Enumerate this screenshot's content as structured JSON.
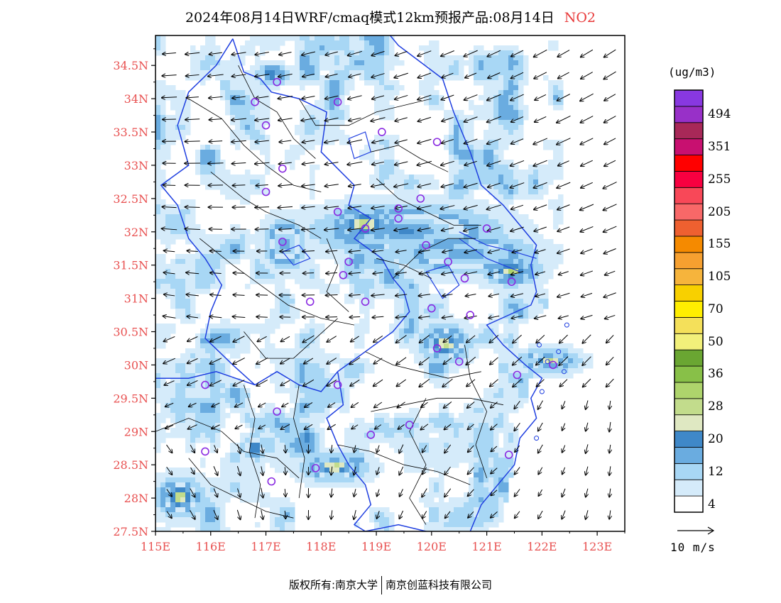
{
  "title": {
    "main": "2024年08月14日WRF/cmaq模式12km预报产品:08月14日",
    "pollutant": "NO2"
  },
  "colorbar": {
    "unit": "(ug/m3)",
    "bins": [
      {
        "label": "4",
        "color": "#ffffff"
      },
      {
        "label": "",
        "color": "#d5ebfa"
      },
      {
        "label": "12",
        "color": "#a8d7f5"
      },
      {
        "label": "",
        "color": "#6aace0"
      },
      {
        "label": "20",
        "color": "#3f88c8"
      },
      {
        "label": "",
        "color": "#dfe8c2"
      },
      {
        "label": "28",
        "color": "#c2dc8c"
      },
      {
        "label": "",
        "color": "#aed46c"
      },
      {
        "label": "36",
        "color": "#88c048"
      },
      {
        "label": "",
        "color": "#6aa632"
      },
      {
        "label": "50",
        "color": "#f2f07a"
      },
      {
        "label": "",
        "color": "#f4e05a"
      },
      {
        "label": "70",
        "color": "#ffee00"
      },
      {
        "label": "",
        "color": "#f8d000"
      },
      {
        "label": "105",
        "color": "#f6b43c"
      },
      {
        "label": "",
        "color": "#f6a030"
      },
      {
        "label": "155",
        "color": "#f58a00"
      },
      {
        "label": "",
        "color": "#ee6030"
      },
      {
        "label": "205",
        "color": "#f86868"
      },
      {
        "label": "",
        "color": "#f84858"
      },
      {
        "label": "255",
        "color": "#f80040"
      },
      {
        "label": "",
        "color": "#ff0000"
      },
      {
        "label": "351",
        "color": "#c81070"
      },
      {
        "label": "",
        "color": "#a82858"
      },
      {
        "label": "494",
        "color": "#9830c8"
      },
      {
        "label": "",
        "color": "#8838e0"
      }
    ]
  },
  "axes": {
    "lon_ticks": [
      "115E",
      "116E",
      "117E",
      "118E",
      "119E",
      "120E",
      "121E",
      "122E",
      "123E"
    ],
    "lat_ticks": [
      "27.5N",
      "28N",
      "28.5N",
      "29N",
      "29.5N",
      "30N",
      "30.5N",
      "31N",
      "31.5N",
      "32N",
      "32.5N",
      "33N",
      "33.5N",
      "34N",
      "34.5N"
    ],
    "lon_range": [
      115.0,
      123.5
    ],
    "lat_range": [
      27.5,
      34.95
    ]
  },
  "wind_scale": {
    "label": "10 m/s"
  },
  "copyright": {
    "prefix": "版权所有:",
    "org1": "南京大学",
    "org2": "南京创蓝科技有限公司"
  },
  "stations": [
    {
      "lon": 117.2,
      "lat": 34.25
    },
    {
      "lon": 116.8,
      "lat": 33.95
    },
    {
      "lon": 118.3,
      "lat": 33.95
    },
    {
      "lon": 117.0,
      "lat": 33.6
    },
    {
      "lon": 119.1,
      "lat": 33.5
    },
    {
      "lon": 120.1,
      "lat": 33.35
    },
    {
      "lon": 117.3,
      "lat": 32.95
    },
    {
      "lon": 117.0,
      "lat": 32.6
    },
    {
      "lon": 119.8,
      "lat": 32.5
    },
    {
      "lon": 118.3,
      "lat": 32.3
    },
    {
      "lon": 118.8,
      "lat": 32.05
    },
    {
      "lon": 119.4,
      "lat": 32.35
    },
    {
      "lon": 119.4,
      "lat": 32.2
    },
    {
      "lon": 121.0,
      "lat": 32.05
    },
    {
      "lon": 117.3,
      "lat": 31.85
    },
    {
      "lon": 119.9,
      "lat": 31.8
    },
    {
      "lon": 118.5,
      "lat": 31.55
    },
    {
      "lon": 120.3,
      "lat": 31.55
    },
    {
      "lon": 118.4,
      "lat": 31.35
    },
    {
      "lon": 120.6,
      "lat": 31.3
    },
    {
      "lon": 121.45,
      "lat": 31.25
    },
    {
      "lon": 117.8,
      "lat": 30.95
    },
    {
      "lon": 118.8,
      "lat": 30.95
    },
    {
      "lon": 120.0,
      "lat": 30.85
    },
    {
      "lon": 120.7,
      "lat": 30.75
    },
    {
      "lon": 120.1,
      "lat": 30.25
    },
    {
      "lon": 120.5,
      "lat": 30.05
    },
    {
      "lon": 121.55,
      "lat": 29.85
    },
    {
      "lon": 122.2,
      "lat": 30.0
    },
    {
      "lon": 115.9,
      "lat": 29.7
    },
    {
      "lon": 118.3,
      "lat": 29.7
    },
    {
      "lon": 117.2,
      "lat": 29.3
    },
    {
      "lon": 119.6,
      "lat": 29.1
    },
    {
      "lon": 118.9,
      "lat": 28.95
    },
    {
      "lon": 115.9,
      "lat": 28.7
    },
    {
      "lon": 121.4,
      "lat": 28.65
    },
    {
      "lon": 117.9,
      "lat": 28.45
    },
    {
      "lon": 117.1,
      "lat": 28.25
    }
  ],
  "hotspots": [
    {
      "lon": 118.75,
      "lat": 32.15,
      "rx": 0.45,
      "ry": 0.2,
      "level": 7
    },
    {
      "lon": 119.5,
      "lat": 32.05,
      "rx": 1.1,
      "ry": 0.25,
      "level": 4
    },
    {
      "lon": 120.6,
      "lat": 31.7,
      "rx": 0.8,
      "ry": 0.2,
      "level": 4
    },
    {
      "lon": 121.4,
      "lat": 31.45,
      "rx": 0.35,
      "ry": 0.15,
      "level": 7
    },
    {
      "lon": 120.2,
      "lat": 30.35,
      "rx": 0.3,
      "ry": 0.2,
      "level": 7
    },
    {
      "lon": 122.1,
      "lat": 30.1,
      "rx": 0.35,
      "ry": 0.12,
      "level": 6
    },
    {
      "lon": 118.2,
      "lat": 28.5,
      "rx": 0.4,
      "ry": 0.15,
      "level": 7
    },
    {
      "lon": 115.4,
      "lat": 28.05,
      "rx": 0.3,
      "ry": 0.2,
      "level": 7
    },
    {
      "lon": 117.3,
      "lat": 31.85,
      "rx": 0.25,
      "ry": 0.25,
      "level": 4
    },
    {
      "lon": 117.05,
      "lat": 34.4,
      "rx": 0.2,
      "ry": 0.1,
      "level": 6
    },
    {
      "lon": 116.75,
      "lat": 28.8,
      "rx": 0.15,
      "ry": 0.12,
      "level": 6
    },
    {
      "lon": 117.7,
      "lat": 28.95,
      "rx": 0.15,
      "ry": 0.1,
      "level": 6
    }
  ]
}
